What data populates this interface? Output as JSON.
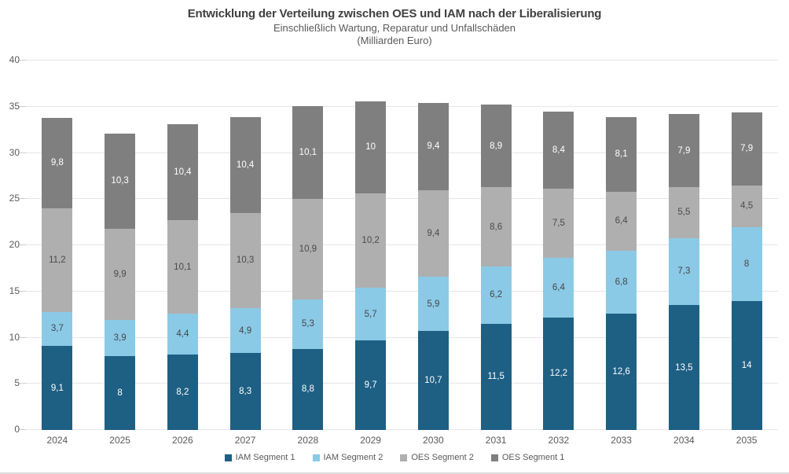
{
  "header": {
    "title": "Entwicklung der Verteilung zwischen OES und IAM nach der Liberalisierung",
    "subtitle": "Einschließlich Wartung, Reparatur und Unfallschäden",
    "unit_line": "(Milliarden Euro)"
  },
  "chart_data": {
    "type": "bar",
    "stacked": true,
    "title": "Entwicklung der Verteilung zwischen OES und IAM nach der Liberalisierung",
    "subtitle": "Einschließlich Wartung, Reparatur und Unfallschäden",
    "unit": "(Milliarden Euro)",
    "categories": [
      "2024",
      "2025",
      "2026",
      "2027",
      "2028",
      "2029",
      "2030",
      "2031",
      "2032",
      "2033",
      "2034",
      "2035"
    ],
    "series": [
      {
        "name": "IAM Segment 1",
        "color": "#1E5F84",
        "label_color": "#FFFFFF",
        "values": [
          9.1,
          8,
          8.2,
          8.3,
          8.8,
          9.7,
          10.7,
          11.5,
          12.2,
          12.6,
          13.5,
          14
        ]
      },
      {
        "name": "IAM Segment 2",
        "color": "#8BCAE6",
        "label_color": "#44464A",
        "values": [
          3.7,
          3.9,
          4.4,
          4.9,
          5.3,
          5.7,
          5.9,
          6.2,
          6.4,
          6.8,
          7.3,
          8
        ]
      },
      {
        "name": "OES Segment 2",
        "color": "#AFAFAF",
        "label_color": "#4A4A4A",
        "values": [
          11.2,
          9.9,
          10.1,
          10.3,
          10.9,
          10.2,
          9.4,
          8.6,
          7.5,
          6.4,
          5.5,
          4.5
        ]
      },
      {
        "name": "OES Segment 1",
        "color": "#7F7F7F",
        "label_color": "#FFFFFF",
        "values": [
          9.8,
          10.3,
          10.4,
          10.4,
          10.1,
          10,
          9.4,
          8.9,
          8.4,
          8.1,
          7.9,
          7.9
        ]
      }
    ],
    "ylim": [
      0,
      40
    ],
    "yticks": [
      0,
      5,
      10,
      15,
      20,
      25,
      30,
      35,
      40
    ],
    "grid": true,
    "legend_position": "bottom",
    "decimal_separator": ","
  }
}
